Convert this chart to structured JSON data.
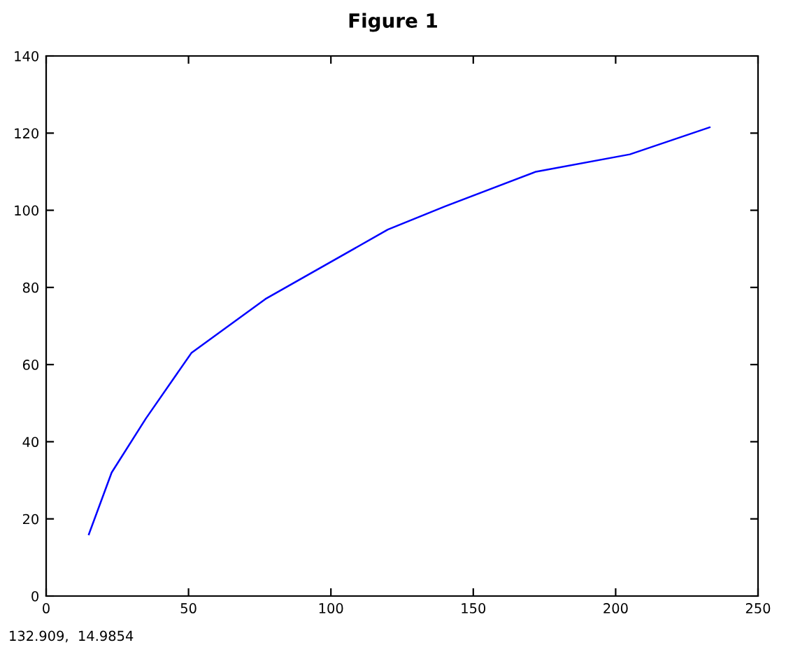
{
  "chart_data": {
    "type": "line",
    "title": "Figure 1",
    "annotations": [
      "132.909,  14.9854"
    ],
    "x": [
      15,
      23,
      35,
      51,
      77,
      120,
      140,
      172,
      205,
      233
    ],
    "series": [
      {
        "color": "#0000ff",
        "values": [
          16,
          32,
          46,
          63,
          77,
          95,
          101,
          110,
          114.5,
          121.5
        ]
      }
    ],
    "xlim": [
      0,
      250
    ],
    "xticks": [
      0,
      50,
      100,
      150,
      200,
      250
    ],
    "ylim": [
      0,
      140
    ],
    "yticks": [
      0,
      20,
      40,
      60,
      80,
      100,
      120,
      140
    ],
    "grid": false,
    "legend": false,
    "marker": "none",
    "line_style": "solid"
  }
}
